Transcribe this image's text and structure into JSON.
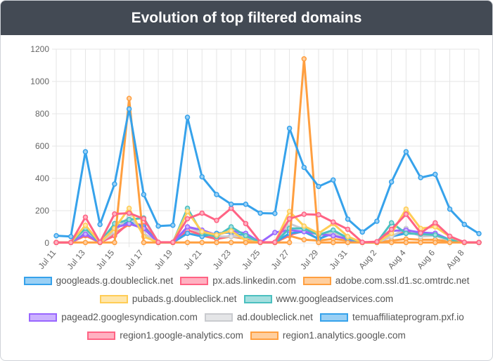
{
  "header": {
    "title": "Evolution of top filtered domains"
  },
  "chart_data": {
    "type": "line",
    "title": "Evolution of top filtered domains",
    "xlabel": "",
    "ylabel": "",
    "ylim": [
      0,
      1200
    ],
    "yticks": [
      0,
      200,
      400,
      600,
      800,
      1000,
      1200
    ],
    "grid": true,
    "legend_position": "bottom",
    "x": [
      "Jul 11",
      "Jul 12",
      "Jul 13",
      "Jul 14",
      "Jul 15",
      "Jul 16",
      "Jul 17",
      "Jul 18",
      "Jul 19",
      "Jul 20",
      "Jul 21",
      "Jul 22",
      "Jul 23",
      "Jul 24",
      "Jul 25",
      "Jul 26",
      "Jul 27",
      "Jul 28",
      "Jul 29",
      "Jul 30",
      "Jul 31",
      "Aug 1",
      "Aug 2",
      "Aug 3",
      "Aug 4",
      "Aug 5",
      "Aug 6",
      "Aug 7",
      "Aug 8",
      "Aug 9"
    ],
    "x_tick_labels": [
      "Jul 11",
      "",
      "Jul 13",
      "",
      "Jul 15",
      "",
      "Jul 17",
      "",
      "Jul 19",
      "",
      "Jul 21",
      "",
      "Jul 23",
      "",
      "Jul 25",
      "",
      "Jul 27",
      "",
      "Jul 29",
      "",
      "Jul 31",
      "",
      "Aug 2",
      "",
      "Aug 4",
      "",
      "Aug 6",
      "",
      "Aug 8",
      ""
    ],
    "series": [
      {
        "name": "googleads.g.doubleclick.net",
        "color": "#36a2eb",
        "fill": "#9ad0f5",
        "values": [
          45,
          40,
          565,
          115,
          365,
          830,
          300,
          105,
          110,
          778,
          410,
          300,
          240,
          240,
          185,
          183,
          710,
          468,
          350,
          390,
          148,
          68,
          135,
          378,
          565,
          405,
          425,
          210,
          115,
          58
        ]
      },
      {
        "name": "px.ads.linkedin.com",
        "color": "#ff6384",
        "fill": "#ffb1c1",
        "values": [
          3,
          3,
          160,
          5,
          180,
          185,
          150,
          5,
          5,
          150,
          185,
          140,
          215,
          120,
          5,
          5,
          150,
          178,
          175,
          130,
          85,
          5,
          8,
          85,
          178,
          62,
          125,
          42,
          5,
          3
        ]
      },
      {
        "name": "adobe.com.ssl.d1.sc.omtrdc.net",
        "color": "#ff9f40",
        "fill": "#ffcf9f",
        "values": [
          3,
          3,
          3,
          3,
          3,
          895,
          3,
          3,
          3,
          3,
          3,
          3,
          3,
          3,
          3,
          3,
          3,
          1140,
          3,
          3,
          3,
          3,
          3,
          3,
          3,
          3,
          3,
          3,
          3,
          3
        ]
      },
      {
        "name": "pubads.g.doubleclick.net",
        "color": "#ffcd56",
        "fill": "#ffe6aa",
        "values": [
          3,
          3,
          110,
          3,
          90,
          215,
          40,
          3,
          3,
          195,
          70,
          50,
          75,
          15,
          3,
          3,
          195,
          105,
          60,
          120,
          40,
          3,
          3,
          60,
          210,
          90,
          100,
          40,
          3,
          3
        ]
      },
      {
        "name": "www.googleadservices.com",
        "color": "#4bc0c0",
        "fill": "#a5dfdf",
        "values": [
          3,
          3,
          90,
          3,
          120,
          145,
          155,
          3,
          3,
          215,
          60,
          40,
          100,
          45,
          3,
          3,
          90,
          90,
          50,
          80,
          30,
          3,
          3,
          125,
          60,
          55,
          50,
          20,
          3,
          3
        ]
      },
      {
        "name": "pagead2.googlesyndication.com",
        "color": "#9966ff",
        "fill": "#ccb2ff",
        "values": [
          3,
          3,
          55,
          3,
          95,
          120,
          90,
          3,
          3,
          100,
          80,
          50,
          75,
          60,
          3,
          65,
          80,
          70,
          55,
          45,
          25,
          3,
          3,
          75,
          80,
          65,
          60,
          20,
          3,
          3
        ]
      },
      {
        "name": "ad.doubleclick.net",
        "color": "#c9cbcf",
        "fill": "#e4e5e7",
        "values": [
          3,
          3,
          80,
          3,
          70,
          165,
          60,
          3,
          3,
          100,
          60,
          40,
          40,
          40,
          3,
          3,
          120,
          85,
          50,
          60,
          30,
          3,
          3,
          40,
          90,
          40,
          45,
          15,
          3,
          3
        ]
      },
      {
        "name": "temuaffiliateprogram.pxf.io",
        "color": "#36a2eb",
        "fill": "#9ad0f5",
        "values": [
          3,
          3,
          60,
          3,
          100,
          130,
          100,
          3,
          3,
          60,
          40,
          60,
          65,
          40,
          3,
          3,
          60,
          70,
          25,
          60,
          20,
          3,
          3,
          40,
          60,
          60,
          50,
          20,
          3,
          3
        ]
      },
      {
        "name": "region1.google-analytics.com",
        "color": "#ff6384",
        "fill": "#ffb1c1",
        "values": [
          3,
          3,
          50,
          3,
          45,
          125,
          110,
          3,
          3,
          80,
          50,
          25,
          45,
          30,
          3,
          3,
          50,
          75,
          25,
          65,
          20,
          3,
          3,
          40,
          75,
          45,
          60,
          15,
          3,
          3
        ]
      },
      {
        "name": "region1.analytics.google.com",
        "color": "#ff9f40",
        "fill": "#ffcf9f",
        "values": [
          3,
          3,
          45,
          3,
          60,
          115,
          105,
          3,
          3,
          60,
          45,
          25,
          40,
          25,
          3,
          3,
          45,
          20,
          15,
          25,
          15,
          3,
          3,
          15,
          25,
          20,
          20,
          10,
          3,
          3
        ]
      }
    ]
  }
}
